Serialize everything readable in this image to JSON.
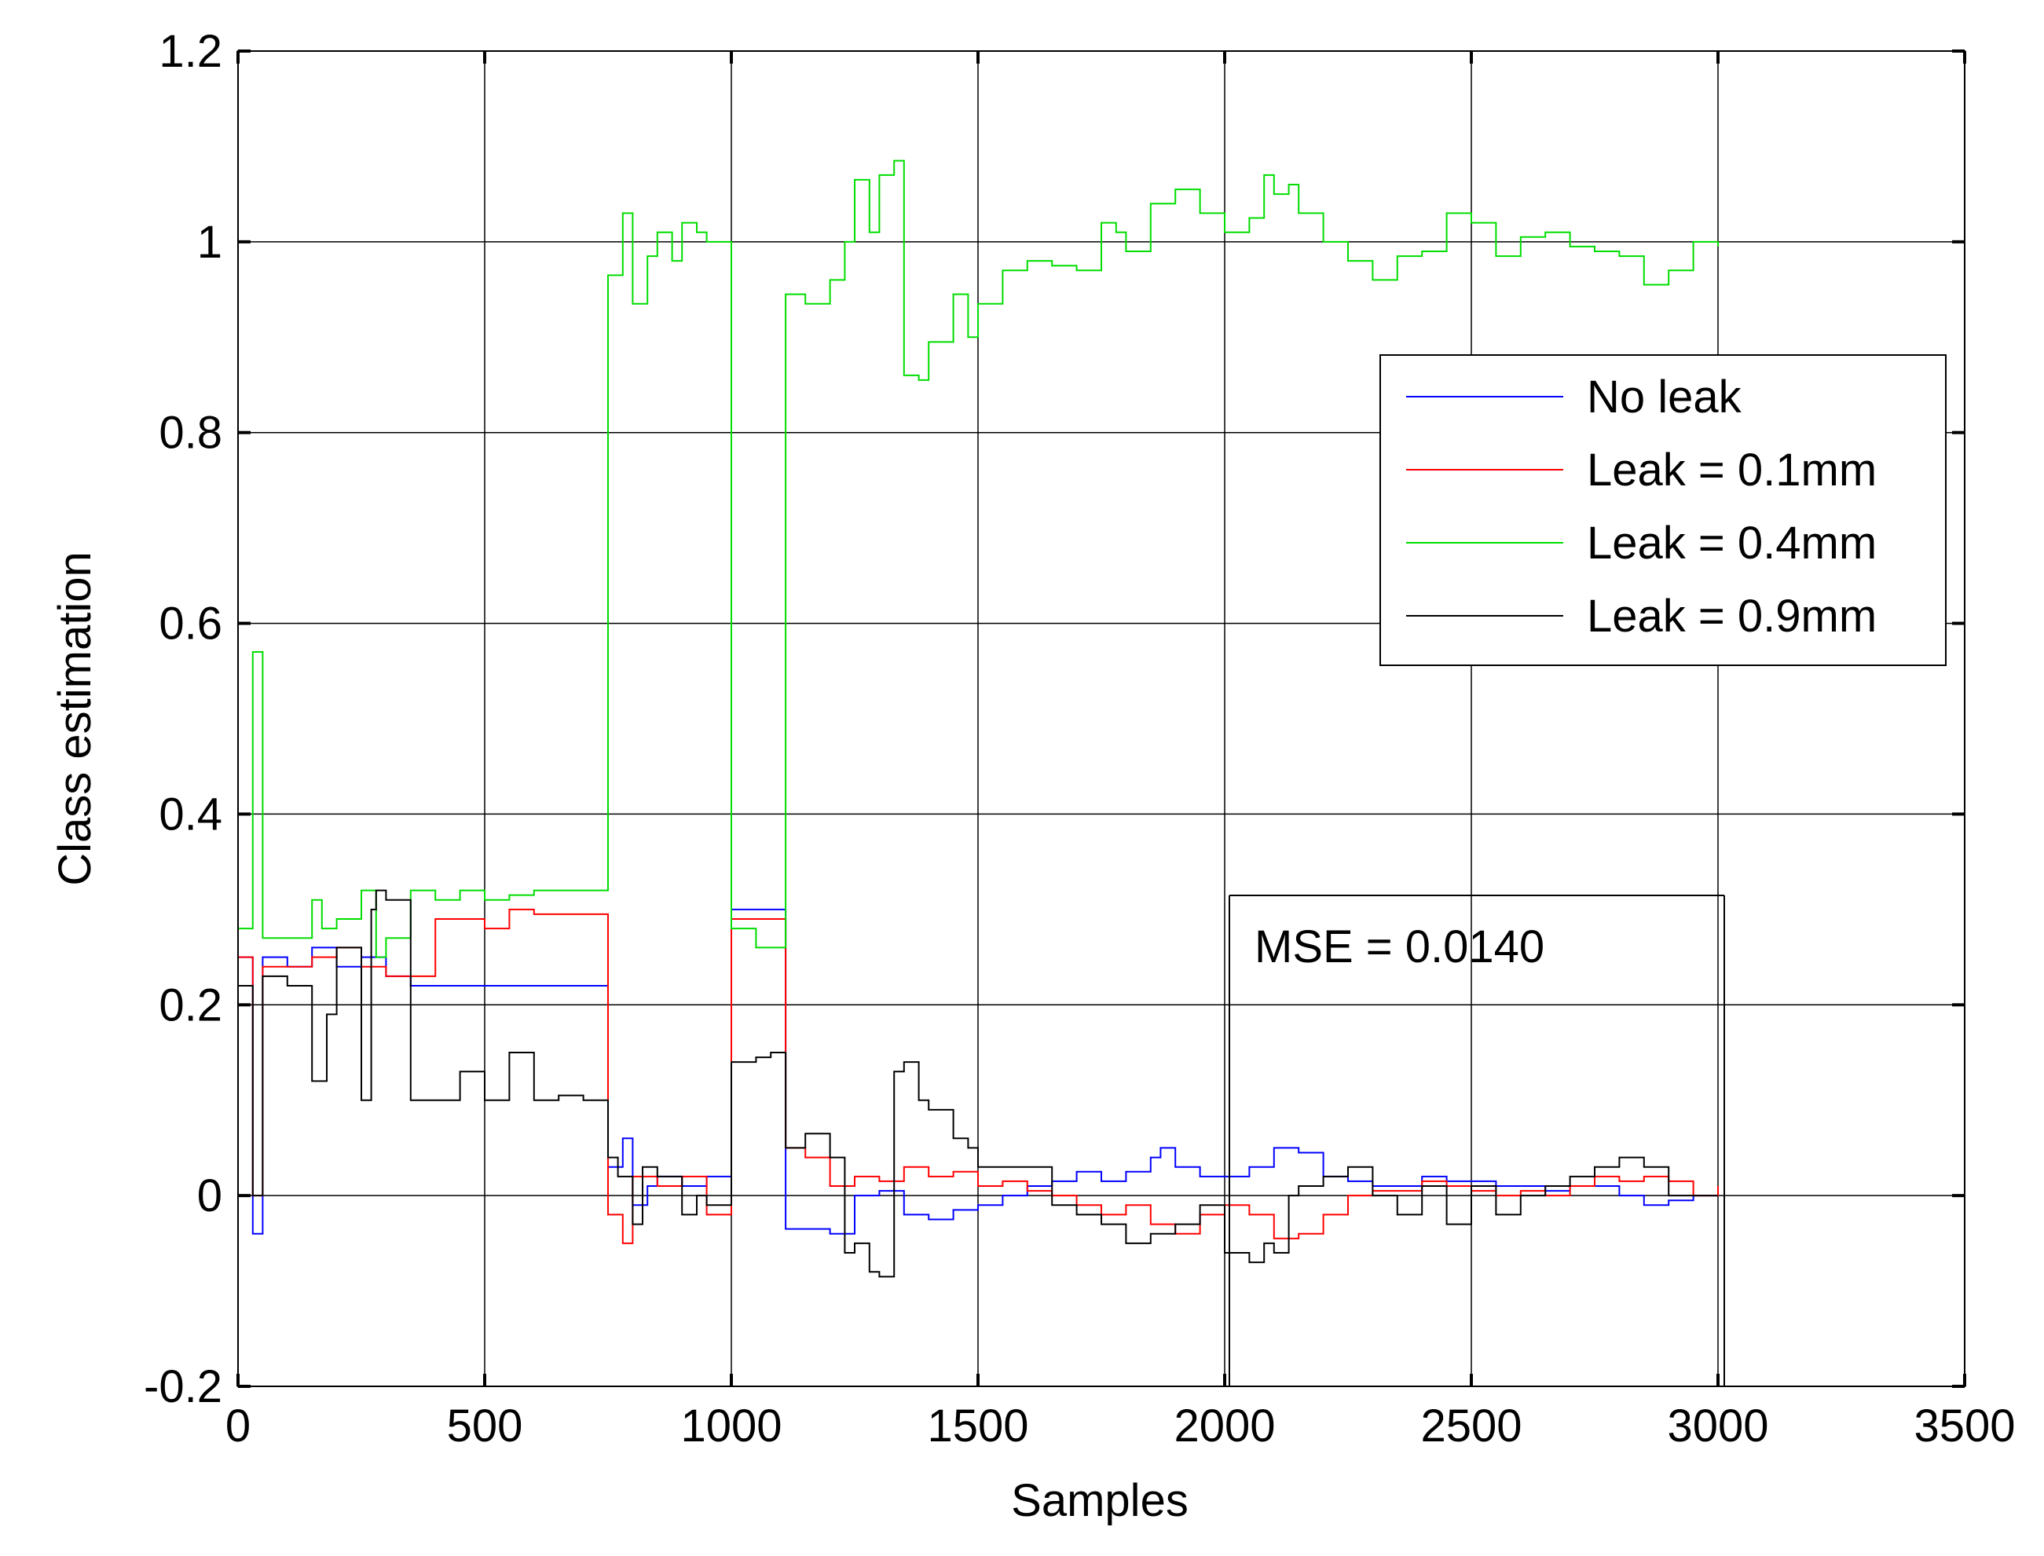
{
  "chart_data": {
    "type": "line",
    "title": "",
    "xlabel": "Samples",
    "ylabel": "Class estimation",
    "xlim": [
      0,
      3500
    ],
    "ylim": [
      -0.2,
      1.2
    ],
    "xticks": [
      0,
      500,
      1000,
      1500,
      2000,
      2500,
      3000,
      3500
    ],
    "yticks": [
      -0.2,
      0,
      0.2,
      0.4,
      0.6,
      0.8,
      1,
      1.2
    ],
    "xtick_labels": [
      "0",
      "500",
      "1000",
      "1500",
      "2000",
      "2500",
      "3000",
      "3500"
    ],
    "ytick_labels": [
      "-0.2",
      "0",
      "0.2",
      "0.4",
      "0.6",
      "0.8",
      "1",
      "1.2"
    ],
    "grid": true,
    "legend_position": "right",
    "annotation": "MSE = 0.0140",
    "series": [
      {
        "name": "No leak",
        "color": "#0000ff",
        "x": [
          0,
          30,
          50,
          100,
          150,
          200,
          250,
          300,
          350,
          750,
          780,
          800,
          830,
          850,
          900,
          950,
          1000,
          1110,
          1200,
          1250,
          1300,
          1350,
          1400,
          1450,
          1500,
          1550,
          1600,
          1650,
          1700,
          1750,
          1800,
          1850,
          1870,
          1900,
          1950,
          2000,
          2050,
          2100,
          2150,
          2200,
          2250,
          2300,
          2350,
          2400,
          2450,
          2500,
          2550,
          2600,
          2650,
          2700,
          2750,
          2800,
          2850,
          2900,
          2950,
          3000
        ],
        "y": [
          0.25,
          -0.04,
          0.25,
          0.24,
          0.26,
          0.24,
          0.25,
          0.23,
          0.22,
          0.03,
          0.06,
          -0.01,
          0.01,
          0.02,
          0.01,
          0.02,
          0.3,
          -0.035,
          -0.04,
          0.0,
          0.005,
          -0.02,
          -0.025,
          -0.015,
          -0.01,
          0.0,
          0.01,
          0.015,
          0.025,
          0.015,
          0.025,
          0.04,
          0.05,
          0.03,
          0.02,
          0.02,
          0.03,
          0.05,
          0.045,
          0.02,
          0.015,
          0.01,
          0.01,
          0.02,
          0.015,
          0.015,
          0.01,
          0.01,
          0.005,
          0.01,
          0.01,
          0.0,
          -0.01,
          -0.005,
          0.0,
          0.0
        ]
      },
      {
        "name": "Leak = 0.1mm",
        "color": "#ff0000",
        "x": [
          0,
          30,
          50,
          100,
          150,
          200,
          250,
          300,
          350,
          400,
          450,
          500,
          550,
          600,
          700,
          750,
          780,
          800,
          830,
          850,
          900,
          950,
          1000,
          1110,
          1150,
          1200,
          1250,
          1300,
          1350,
          1400,
          1450,
          1500,
          1550,
          1600,
          1650,
          1700,
          1750,
          1800,
          1850,
          1900,
          1950,
          2000,
          2050,
          2100,
          2150,
          2200,
          2250,
          2300,
          2350,
          2400,
          2450,
          2500,
          2550,
          2600,
          2650,
          2700,
          2750,
          2800,
          2850,
          2900,
          2950,
          3000
        ],
        "y": [
          0.25,
          0.0,
          0.24,
          0.24,
          0.25,
          0.26,
          0.24,
          0.23,
          0.23,
          0.29,
          0.29,
          0.28,
          0.3,
          0.295,
          0.295,
          -0.02,
          -0.05,
          0.02,
          0.02,
          0.01,
          0.02,
          -0.02,
          0.29,
          0.05,
          0.04,
          0.01,
          0.02,
          0.015,
          0.03,
          0.02,
          0.025,
          0.01,
          0.015,
          0.005,
          0.0,
          -0.01,
          -0.02,
          -0.01,
          -0.03,
          -0.04,
          -0.02,
          -0.01,
          -0.02,
          -0.045,
          -0.04,
          -0.02,
          0.0,
          0.005,
          0.005,
          0.015,
          0.01,
          0.005,
          0.0,
          0.005,
          0.0,
          0.01,
          0.02,
          0.015,
          0.02,
          0.015,
          0.0,
          0.01
        ]
      },
      {
        "name": "Leak = 0.4mm",
        "color": "#00dd00",
        "x": [
          0,
          30,
          50,
          100,
          150,
          170,
          200,
          250,
          280,
          300,
          350,
          400,
          450,
          500,
          550,
          600,
          750,
          780,
          800,
          830,
          850,
          880,
          900,
          930,
          950,
          1000,
          1050,
          1110,
          1150,
          1200,
          1230,
          1250,
          1280,
          1300,
          1330,
          1350,
          1380,
          1400,
          1450,
          1480,
          1500,
          1550,
          1600,
          1650,
          1700,
          1750,
          1780,
          1800,
          1850,
          1900,
          1950,
          2000,
          2050,
          2080,
          2100,
          2130,
          2150,
          2200,
          2250,
          2300,
          2350,
          2400,
          2450,
          2500,
          2550,
          2600,
          2650,
          2700,
          2750,
          2800,
          2850,
          2900,
          2950,
          3000
        ],
        "y": [
          0.28,
          0.57,
          0.27,
          0.27,
          0.31,
          0.28,
          0.29,
          0.32,
          0.25,
          0.27,
          0.32,
          0.31,
          0.32,
          0.31,
          0.315,
          0.32,
          0.965,
          1.03,
          0.935,
          0.985,
          1.01,
          0.98,
          1.02,
          1.01,
          1.0,
          0.28,
          0.26,
          0.945,
          0.935,
          0.96,
          1.0,
          1.065,
          1.01,
          1.07,
          1.085,
          0.86,
          0.855,
          0.895,
          0.945,
          0.9,
          0.935,
          0.97,
          0.98,
          0.975,
          0.97,
          1.02,
          1.01,
          0.99,
          1.04,
          1.055,
          1.03,
          1.01,
          1.025,
          1.07,
          1.05,
          1.06,
          1.03,
          1.0,
          0.98,
          0.96,
          0.985,
          0.99,
          1.03,
          1.02,
          0.985,
          1.005,
          1.01,
          0.995,
          0.99,
          0.985,
          0.955,
          0.97,
          1.0,
          0.995
        ]
      },
      {
        "name": "Leak = 0.9mm",
        "color": "#000000",
        "x": [
          0,
          30,
          50,
          100,
          150,
          180,
          200,
          250,
          270,
          280,
          300,
          350,
          400,
          450,
          500,
          550,
          600,
          650,
          700,
          750,
          770,
          800,
          820,
          850,
          880,
          900,
          930,
          950,
          1000,
          1050,
          1080,
          1110,
          1150,
          1200,
          1230,
          1250,
          1280,
          1300,
          1330,
          1350,
          1380,
          1400,
          1450,
          1480,
          1500,
          1550,
          1600,
          1650,
          1700,
          1750,
          1800,
          1850,
          1900,
          1950,
          2000,
          2050,
          2080,
          2100,
          2130,
          2150,
          2200,
          2250,
          2300,
          2350,
          2400,
          2450,
          2500,
          2550,
          2600,
          2650,
          2700,
          2750,
          2800,
          2850,
          2900,
          2950,
          3000
        ],
        "y": [
          0.22,
          0.0,
          0.23,
          0.22,
          0.12,
          0.19,
          0.26,
          0.1,
          0.3,
          0.32,
          0.31,
          0.1,
          0.1,
          0.13,
          0.1,
          0.15,
          0.1,
          0.105,
          0.1,
          0.04,
          0.02,
          -0.03,
          0.03,
          0.02,
          0.02,
          -0.02,
          0.0,
          -0.01,
          0.14,
          0.145,
          0.15,
          0.05,
          0.065,
          0.04,
          -0.06,
          -0.05,
          -0.08,
          -0.085,
          0.13,
          0.14,
          0.1,
          0.09,
          0.06,
          0.05,
          0.03,
          0.03,
          0.03,
          -0.01,
          -0.02,
          -0.03,
          -0.05,
          -0.04,
          -0.03,
          -0.01,
          -0.06,
          -0.07,
          -0.05,
          -0.06,
          0.0,
          0.01,
          0.02,
          0.03,
          0.0,
          -0.02,
          0.01,
          -0.03,
          0.01,
          -0.02,
          0.0,
          0.01,
          0.02,
          0.03,
          0.04,
          0.03,
          0.0,
          0.0,
          0.0
        ]
      }
    ]
  }
}
